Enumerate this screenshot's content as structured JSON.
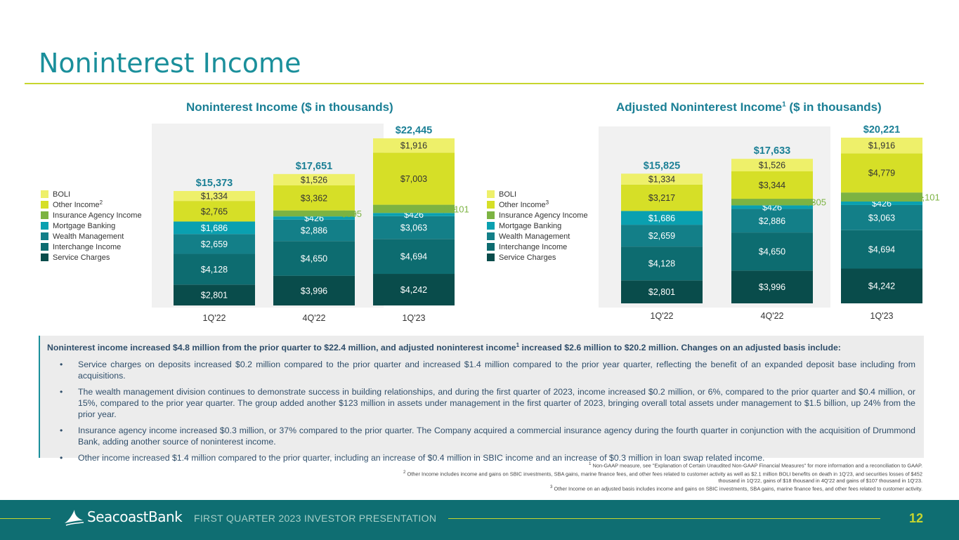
{
  "page": {
    "title": "Noninterest Income"
  },
  "legend_left": {
    "items": [
      {
        "label": "BOLI",
        "color": "#eef06a",
        "sup": ""
      },
      {
        "label": "Other Income",
        "color": "#d6df27",
        "sup": "2"
      },
      {
        "label": "Insurance Agency Income",
        "color": "#7cb342",
        "sup": ""
      },
      {
        "label": "Mortgage Banking",
        "color": "#0aa0b0",
        "sup": ""
      },
      {
        "label": "Wealth Management",
        "color": "#137f88",
        "sup": ""
      },
      {
        "label": "Interchange Income",
        "color": "#0d6c70",
        "sup": ""
      },
      {
        "label": "Service Charges",
        "color": "#094c4b",
        "sup": ""
      }
    ]
  },
  "legend_right": {
    "items": [
      {
        "label": "BOLI",
        "color": "#eef06a",
        "sup": ""
      },
      {
        "label": "Other Income",
        "color": "#d6df27",
        "sup": "3"
      },
      {
        "label": "Insurance Agency Income",
        "color": "#7cb342",
        "sup": ""
      },
      {
        "label": "Mortgage Banking",
        "color": "#0aa0b0",
        "sup": ""
      },
      {
        "label": "Wealth Management",
        "color": "#137f88",
        "sup": ""
      },
      {
        "label": "Interchange Income",
        "color": "#0d6c70",
        "sup": ""
      },
      {
        "label": "Service Charges",
        "color": "#094c4b",
        "sup": ""
      }
    ]
  },
  "chart_data": [
    {
      "type": "bar",
      "stacked": true,
      "title": "Noninterest Income ($ in thousands)",
      "title_sup": "",
      "categories": [
        "1Q'22",
        "4Q'22",
        "1Q'23"
      ],
      "totals": [
        "$15,373",
        "$17,651",
        "$22,445"
      ],
      "series": [
        {
          "name": "Service Charges",
          "color": "#094c4b",
          "values": [
            2801,
            3996,
            4242
          ],
          "labels": [
            "$2,801",
            "$3,996",
            "$4,242"
          ]
        },
        {
          "name": "Interchange Income",
          "color": "#0d6c70",
          "values": [
            4128,
            4650,
            4694
          ],
          "labels": [
            "$4,128",
            "$4,650",
            "$4,694"
          ]
        },
        {
          "name": "Wealth Management",
          "color": "#137f88",
          "values": [
            2659,
            2886,
            3063
          ],
          "labels": [
            "$2,659",
            "$2,886",
            "$3,063"
          ]
        },
        {
          "name": "Mortgage Banking",
          "color": "#0aa0b0",
          "values": [
            1686,
            426,
            426
          ],
          "labels": [
            "$1,686",
            "$426",
            "$426"
          ]
        },
        {
          "name": "Insurance Agency Income",
          "color": "#7cb342",
          "values": [
            0,
            805,
            1101
          ],
          "labels": [
            "",
            "$805",
            "$1,101"
          ]
        },
        {
          "name": "Other Income",
          "color": "#d6df27",
          "values": [
            2765,
            3362,
            7003
          ],
          "labels": [
            "$2,765",
            "$3,362",
            "$7,003"
          ]
        },
        {
          "name": "BOLI",
          "color": "#eef06a",
          "values": [
            1334,
            1526,
            1916
          ],
          "labels": [
            "$1,334",
            "$1,526",
            "$1,916"
          ]
        }
      ],
      "callout_series": "Insurance Agency Income",
      "callout_color": "#7cb342",
      "ylim": [
        0,
        23500
      ]
    },
    {
      "type": "bar",
      "stacked": true,
      "title": "Adjusted Noninterest Income",
      "title_sup": "1",
      "title_suffix": " ($ in thousands)",
      "categories": [
        "1Q'22",
        "4Q'22",
        "1Q'23"
      ],
      "totals": [
        "$15,825",
        "$17,633",
        "$20,221"
      ],
      "series": [
        {
          "name": "Service Charges",
          "color": "#094c4b",
          "values": [
            2801,
            3996,
            4242
          ],
          "labels": [
            "$2,801",
            "$3,996",
            "$4,242"
          ]
        },
        {
          "name": "Interchange Income",
          "color": "#0d6c70",
          "values": [
            4128,
            4650,
            4694
          ],
          "labels": [
            "$4,128",
            "$4,650",
            "$4,694"
          ]
        },
        {
          "name": "Wealth Management",
          "color": "#137f88",
          "values": [
            2659,
            2886,
            3063
          ],
          "labels": [
            "$2,659",
            "$2,886",
            "$3,063"
          ]
        },
        {
          "name": "Mortgage Banking",
          "color": "#0aa0b0",
          "values": [
            1686,
            426,
            426
          ],
          "labels": [
            "$1,686",
            "$426",
            "$426"
          ]
        },
        {
          "name": "Insurance Agency Income",
          "color": "#7cb342",
          "values": [
            0,
            805,
            1101
          ],
          "labels": [
            "",
            "$805",
            "$1,101"
          ]
        },
        {
          "name": "Other Income",
          "color": "#d6df27",
          "values": [
            3217,
            3344,
            4779
          ],
          "labels": [
            "$3,217",
            "$3,344",
            "$4,779"
          ]
        },
        {
          "name": "BOLI",
          "color": "#eef06a",
          "values": [
            1334,
            1526,
            1916
          ],
          "labels": [
            "$1,334",
            "$1,526",
            "$1,916"
          ]
        }
      ],
      "callout_series": "Insurance Agency Income",
      "callout_color": "#7cb342",
      "ylim": [
        0,
        21000
      ]
    }
  ],
  "summary": {
    "heading_a": "Noninterest income increased $4.8 million from the prior quarter to $22.4 million, and adjusted noninterest income",
    "heading_sup": "1",
    "heading_b": " increased $2.6 million to $20.2 million. Changes on an adjusted basis include:",
    "bullets": [
      "Service charges on deposits increased $0.2 million compared to the prior quarter and increased $1.4 million compared to the prior year quarter, reflecting the benefit of an expanded deposit base including from acquisitions.",
      "The wealth management division continues to demonstrate success in building relationships, and during the first quarter of 2023, income increased $0.2 million, or 6%, compared to the prior quarter and $0.4 million, or 15%, compared to the prior year quarter. The group added another $123 million in assets under management in the first quarter of 2023, bringing overall total assets under management to $1.5 billion, up 24% from the prior year.",
      "Insurance agency income increased $0.3 million, or 37% compared to the prior quarter.  The Company acquired a commercial insurance agency during the fourth quarter in conjunction with the acquisition of Drummond Bank, adding another source of noninterest income.",
      "Other income increased $1.4 million compared to the prior quarter, including an increase of $0.4 million in SBIC income and an increase of $0.3 million in loan swap related income."
    ],
    "bullet_char": "•"
  },
  "footnotes": [
    {
      "num": "1",
      "text": " Non-GAAP measure, see \"Explanation of Certain Unaudited Non-GAAP Financial Measures\" for more information and a reconciliation to GAAP."
    },
    {
      "num": "2",
      "text": " Other Income includes income and gains on SBIC investments, SBA gains, marine finance fees, and other fees related to customer activity as well as $2.1 million BOLI benefits on death in 1Q'23, and securities losses of $452 thousand in 1Q'22, gains of $18 thousand in 4Q'22 and gains of $107 thousand in 1Q'23."
    },
    {
      "num": "3",
      "text": " Other Income on an adjusted basis includes income and gains on SBIC investments, SBA gains, marine finance fees, and other fees related to customer activity."
    }
  ],
  "footer": {
    "logo_text": "SeacoastBank",
    "label": "FIRST QUARTER 2023 INVESTOR PRESENTATION",
    "page_number": "12"
  }
}
